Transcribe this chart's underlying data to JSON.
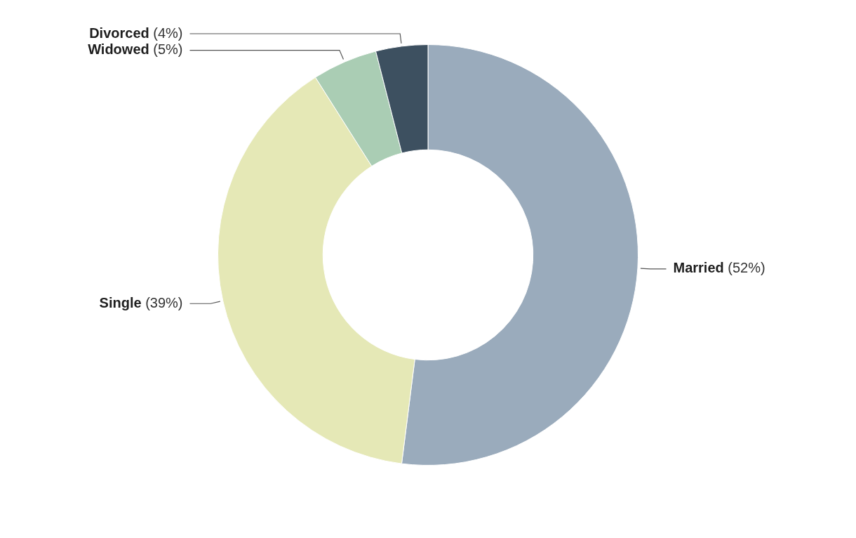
{
  "chart_data": {
    "type": "donut",
    "categories": [
      "Married",
      "Single",
      "Widowed",
      "Divorced"
    ],
    "values": [
      52,
      39,
      5,
      4
    ],
    "colors": [
      "#9aabbc",
      "#e5e8b6",
      "#aacdb4",
      "#3d5060"
    ],
    "value_labels": [
      "(52%)",
      "(39%)",
      "(5%)",
      "(4%)"
    ],
    "legend": false
  }
}
